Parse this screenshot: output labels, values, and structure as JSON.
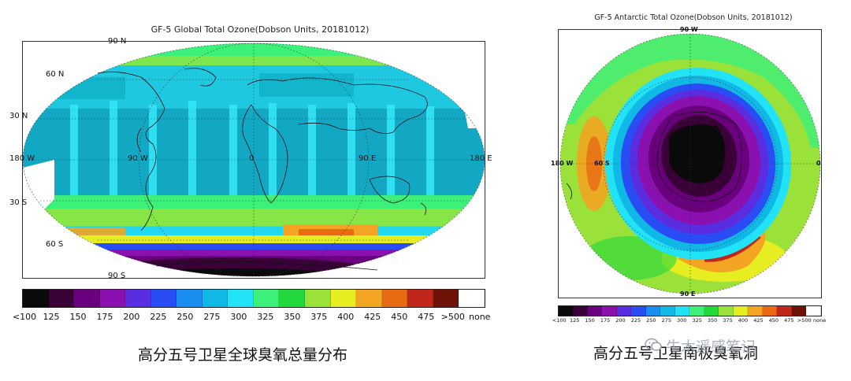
{
  "global_map": {
    "title": "GF-5 Global Total Ozone(Dobson Units, 20181012)",
    "lat_labels": [
      "90 N",
      "60 N",
      "30 N",
      "0",
      "30 S",
      "60 S",
      "90 S"
    ],
    "lon_labels": [
      "180 W",
      "90 W",
      "0",
      "90 E",
      "180 E"
    ],
    "caption": "高分五号卫星全球臭氧总量分布"
  },
  "antarctic_map": {
    "title": "GF-5 Antarctic Total Ozone(Dobson Units, 20181012)",
    "labels": [
      "90 W",
      "180 W",
      "60 S",
      "0",
      "90 E"
    ],
    "caption": "高分五号卫星南极臭氧洞"
  },
  "colorbar": {
    "tick_labels": [
      "<100",
      "125",
      "150",
      "175",
      "200",
      "225",
      "250",
      "275",
      "300",
      "325",
      "350",
      "375",
      "400",
      "425",
      "450",
      "475",
      ">500",
      "none"
    ],
    "colors": [
      "#0a0a0a",
      "#3a0038",
      "#6a007e",
      "#8a10b0",
      "#5a2ee0",
      "#2a4cf5",
      "#1a8ef0",
      "#10b8e6",
      "#22e2f6",
      "#3cf07a",
      "#22d83c",
      "#9ae23a",
      "#e6ee22",
      "#f2a422",
      "#ea6a14",
      "#c0261a",
      "#6e1208",
      "#ffffff"
    ]
  },
  "watermark": "牛木遥感笔记"
}
